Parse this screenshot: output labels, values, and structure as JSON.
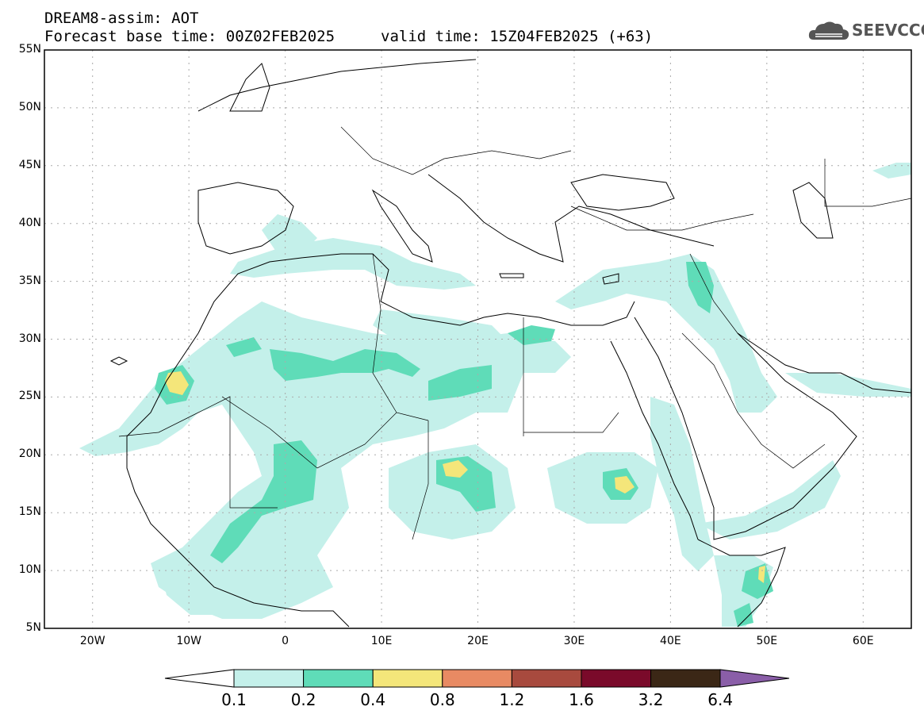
{
  "header": {
    "title_line1": "DREAM8-assim: AOT",
    "title_line2": "Forecast base time: 00Z02FEB2025",
    "valid_time": "valid time: 15Z04FEB2025 (+63)",
    "logo_text": "SEEVCCC"
  },
  "axes": {
    "lat_labels": [
      "55N",
      "50N",
      "45N",
      "40N",
      "35N",
      "30N",
      "25N",
      "20N",
      "15N",
      "10N",
      "5N"
    ],
    "lat_values": [
      55,
      50,
      45,
      40,
      35,
      30,
      25,
      20,
      15,
      10,
      5
    ],
    "lon_labels": [
      "20W",
      "10W",
      "0",
      "10E",
      "20E",
      "30E",
      "40E",
      "50E",
      "60E"
    ],
    "lon_values": [
      -20,
      -10,
      0,
      10,
      20,
      30,
      40,
      50,
      60
    ],
    "lon_range": [
      -25,
      65
    ],
    "lat_range": [
      5,
      55
    ]
  },
  "colorbar": {
    "labels": [
      "0.1",
      "0.2",
      "0.4",
      "0.8",
      "1.2",
      "1.6",
      "3.2",
      "6.4"
    ],
    "colors": [
      "#c4f0ea",
      "#5fdcb8",
      "#f4e67a",
      "#e88a63",
      "#a84a3e",
      "#7a0a2a",
      "#3b2716",
      "#8a5ea8"
    ]
  }
}
